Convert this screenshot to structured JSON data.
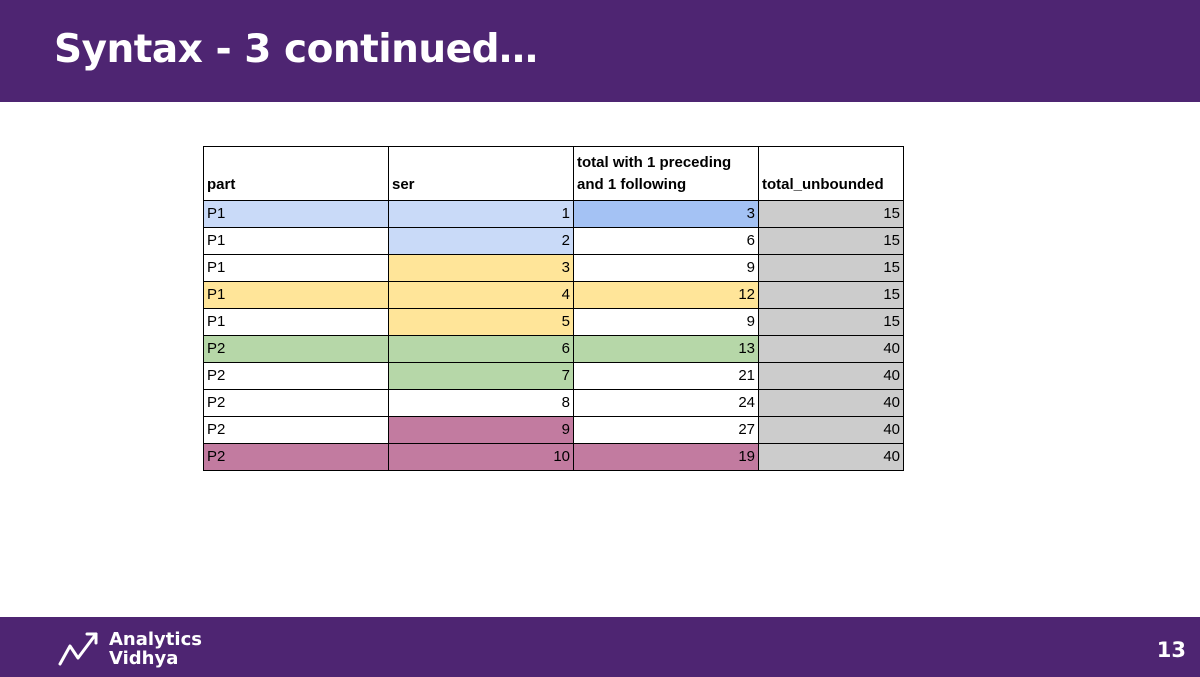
{
  "slide": {
    "title": "Syntax - 3 continued…",
    "page_number": "13"
  },
  "logo": {
    "line1": "Analytics",
    "line2": "Vidhya"
  },
  "table": {
    "columns": [
      "part",
      "ser",
      "total with 1 preceding and 1 following",
      "total_unbounded"
    ],
    "rows": [
      {
        "part": "P1",
        "ser": "1",
        "total": "3",
        "unbounded": "15"
      },
      {
        "part": "P1",
        "ser": "2",
        "total": "6",
        "unbounded": "15"
      },
      {
        "part": "P1",
        "ser": "3",
        "total": "9",
        "unbounded": "15"
      },
      {
        "part": "P1",
        "ser": "4",
        "total": "12",
        "unbounded": "15"
      },
      {
        "part": "P1",
        "ser": "5",
        "total": "9",
        "unbounded": "15"
      },
      {
        "part": "P2",
        "ser": "6",
        "total": "13",
        "unbounded": "40"
      },
      {
        "part": "P2",
        "ser": "7",
        "total": "21",
        "unbounded": "40"
      },
      {
        "part": "P2",
        "ser": "8",
        "total": "24",
        "unbounded": "40"
      },
      {
        "part": "P2",
        "ser": "9",
        "total": "27",
        "unbounded": "40"
      },
      {
        "part": "P2",
        "ser": "10",
        "total": "19",
        "unbounded": "40"
      }
    ],
    "highlight_colors": {
      "light_blue": "#c9daf8",
      "blue": "#a4c2f4",
      "yellow": "#ffe599",
      "green": "#b6d7a8",
      "mauve": "#c27ba0",
      "gray": "#cccccc",
      "header_band": "#4e2572"
    },
    "row_fills": [
      [
        "light_blue",
        "light_blue",
        "blue",
        "gray"
      ],
      [
        "",
        "light_blue",
        "",
        "gray"
      ],
      [
        "",
        "yellow",
        "",
        "gray"
      ],
      [
        "yellow",
        "yellow",
        "yellow",
        "gray"
      ],
      [
        "",
        "yellow",
        "",
        "gray"
      ],
      [
        "green",
        "green",
        "green",
        "gray"
      ],
      [
        "",
        "green",
        "",
        "gray"
      ],
      [
        "",
        "",
        "",
        "gray"
      ],
      [
        "",
        "mauve",
        "",
        "gray"
      ],
      [
        "mauve",
        "mauve",
        "mauve",
        "gray"
      ]
    ]
  }
}
